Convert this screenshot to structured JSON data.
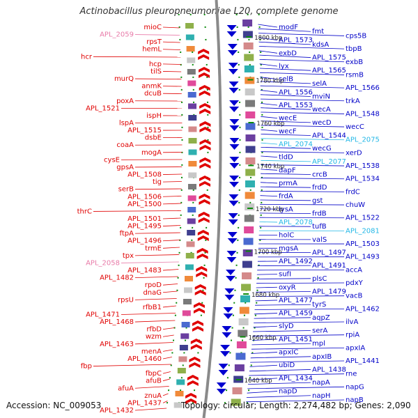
{
  "header": {
    "title": "Actinobacillus pleuropneumoniae L20, complete genome"
  },
  "footer": {
    "accession": "Accession: NC_009053",
    "summary": "Topology: circular; Length: 2,274,482 bp; Genes: 2,090"
  },
  "colors": {
    "left_label": "#e00000",
    "left_label_pseudo": "#e87aa8",
    "right_label": "#0000c8",
    "right_label_special": "#22b7e6",
    "backbone": "#8a8a8a",
    "tick": "#0a8a0a"
  },
  "ruler": {
    "marks": [
      {
        "label": "1800 kbp"
      },
      {
        "label": "1780 kbp"
      },
      {
        "label": "1760 kbp"
      },
      {
        "label": "1740 kbp"
      },
      {
        "label": "1720 kbp"
      },
      {
        "label": "1700 kbp"
      },
      {
        "label": "1680 kbp"
      },
      {
        "label": "1660 kbp"
      },
      {
        "label": "1640 kbp"
      }
    ]
  },
  "left_labels": [
    {
      "text": "mioC"
    },
    {
      "text": "APL_2059",
      "pseudo": true
    },
    {
      "text": "rpsT"
    },
    {
      "text": "hemL"
    },
    {
      "text": "hcr"
    },
    {
      "text": "hcp"
    },
    {
      "text": "tilS"
    },
    {
      "text": "murQ"
    },
    {
      "text": "anmK"
    },
    {
      "text": "dcuB"
    },
    {
      "text": "poxA"
    },
    {
      "text": "APL_1521"
    },
    {
      "text": "ispH"
    },
    {
      "text": "lspA"
    },
    {
      "text": "APL_1515"
    },
    {
      "text": "dsbE"
    },
    {
      "text": "coaA"
    },
    {
      "text": "mogA"
    },
    {
      "text": "cysE"
    },
    {
      "text": "gpsA"
    },
    {
      "text": "APL_1508"
    },
    {
      "text": "tig"
    },
    {
      "text": "serB"
    },
    {
      "text": "APL_1506"
    },
    {
      "text": "APL_1500"
    },
    {
      "text": "thrC"
    },
    {
      "text": "APL_1501"
    },
    {
      "text": "APL_1495"
    },
    {
      "text": "ftpA"
    },
    {
      "text": "APL_1496"
    },
    {
      "text": "trmE"
    },
    {
      "text": "tpx"
    },
    {
      "text": "APL_2058",
      "pseudo": true
    },
    {
      "text": "APL_1483"
    },
    {
      "text": "APL_1482"
    },
    {
      "text": "rpoD"
    },
    {
      "text": "dnaG"
    },
    {
      "text": "rpsU"
    },
    {
      "text": "rfbB1"
    },
    {
      "text": "APL_1471"
    },
    {
      "text": "APL_1468"
    },
    {
      "text": "rfbD"
    },
    {
      "text": "wzm"
    },
    {
      "text": "APL_1463"
    },
    {
      "text": "menA"
    },
    {
      "text": "APL_1460"
    },
    {
      "text": "fbp"
    },
    {
      "text": "fbpC"
    },
    {
      "text": "afuB"
    },
    {
      "text": "afuA"
    },
    {
      "text": "znuA"
    },
    {
      "text": "APL_1437"
    },
    {
      "text": "APL_1432"
    }
  ],
  "right_labels": [
    {
      "text": "modF"
    },
    {
      "text": "fmt"
    },
    {
      "text": "cps5B"
    },
    {
      "text": "APL_1573"
    },
    {
      "text": "kdsA"
    },
    {
      "text": "tbpB"
    },
    {
      "text": "exbD"
    },
    {
      "text": "APL_1575"
    },
    {
      "text": "exbB"
    },
    {
      "text": "lyx"
    },
    {
      "text": "APL_1565"
    },
    {
      "text": "rsmB"
    },
    {
      "text": "selB"
    },
    {
      "text": "selA"
    },
    {
      "text": "APL_1566"
    },
    {
      "text": "APL_1556"
    },
    {
      "text": "mviN"
    },
    {
      "text": "trkA"
    },
    {
      "text": "APL_1553"
    },
    {
      "text": "wecA"
    },
    {
      "text": "APL_1548"
    },
    {
      "text": "wecE"
    },
    {
      "text": "wecD"
    },
    {
      "text": "wecC"
    },
    {
      "text": "wecF"
    },
    {
      "text": "APL_1544"
    },
    {
      "text": "APL_2075",
      "special": true
    },
    {
      "text": "APL_2074",
      "special": true
    },
    {
      "text": "wecG"
    },
    {
      "text": "xerD"
    },
    {
      "text": "tldD"
    },
    {
      "text": "APL_2077",
      "special": true
    },
    {
      "text": "APL_1538"
    },
    {
      "text": "dapF"
    },
    {
      "text": "crcB"
    },
    {
      "text": "APL_1534"
    },
    {
      "text": "prmA"
    },
    {
      "text": "frdD"
    },
    {
      "text": "frdC"
    },
    {
      "text": "frdA"
    },
    {
      "text": "gst"
    },
    {
      "text": "chuW"
    },
    {
      "text": "lysA"
    },
    {
      "text": "frdB"
    },
    {
      "text": "APL_1522"
    },
    {
      "text": "APL_2078",
      "special": true
    },
    {
      "text": "tufB"
    },
    {
      "text": "APL_2081",
      "special": true
    },
    {
      "text": "holC"
    },
    {
      "text": "valS"
    },
    {
      "text": "APL_1503"
    },
    {
      "text": "mgsA"
    },
    {
      "text": "APL_1497"
    },
    {
      "text": "APL_1493"
    },
    {
      "text": "APL_1492"
    },
    {
      "text": "APL_1491"
    },
    {
      "text": "accA"
    },
    {
      "text": "sufI"
    },
    {
      "text": "plsC"
    },
    {
      "text": "pdxY"
    },
    {
      "text": "oxyR"
    },
    {
      "text": "APL_1479"
    },
    {
      "text": "vacB"
    },
    {
      "text": "APL_1477"
    },
    {
      "text": "tyrS"
    },
    {
      "text": "APL_1462"
    },
    {
      "text": "APL_1459"
    },
    {
      "text": "aqpZ"
    },
    {
      "text": "ilvA"
    },
    {
      "text": "slyD"
    },
    {
      "text": "serA"
    },
    {
      "text": "rpiA"
    },
    {
      "text": "APL_1451"
    },
    {
      "text": "mpl"
    },
    {
      "text": "apxIA"
    },
    {
      "text": "apxIC"
    },
    {
      "text": "apxIB"
    },
    {
      "text": "APL_1441"
    },
    {
      "text": "ubiD"
    },
    {
      "text": "APL_1438"
    },
    {
      "text": "rne"
    },
    {
      "text": "APL_1434"
    },
    {
      "text": "napA"
    },
    {
      "text": "napG"
    },
    {
      "text": "napD"
    },
    {
      "text": "napH"
    },
    {
      "text": "napB"
    }
  ],
  "features": {
    "left_arrows": [
      {
        "kind": "red"
      },
      {
        "kind": "red"
      },
      {
        "kind": "red"
      },
      {
        "kind": "red"
      },
      {
        "kind": "red"
      },
      {
        "kind": "red"
      },
      {
        "kind": "red"
      },
      {
        "kind": "red"
      },
      {
        "kind": "red"
      },
      {
        "kind": "red"
      },
      {
        "kind": "red"
      },
      {
        "kind": "red"
      },
      {
        "kind": "red"
      },
      {
        "kind": "red"
      },
      {
        "kind": "red"
      },
      {
        "kind": "red"
      },
      {
        "kind": "red"
      },
      {
        "kind": "red"
      },
      {
        "kind": "red"
      },
      {
        "kind": "red"
      }
    ],
    "right_arrows": [
      {
        "kind": "blue"
      },
      {
        "kind": "blue"
      },
      {
        "kind": "blue"
      },
      {
        "kind": "blue"
      },
      {
        "kind": "blue"
      },
      {
        "kind": "blue"
      },
      {
        "kind": "blue"
      },
      {
        "kind": "blue"
      },
      {
        "kind": "blue"
      },
      {
        "kind": "blue"
      },
      {
        "kind": "blue"
      },
      {
        "kind": "blue"
      },
      {
        "kind": "blue"
      },
      {
        "kind": "blue"
      },
      {
        "kind": "blue"
      },
      {
        "kind": "blue"
      },
      {
        "kind": "blue"
      },
      {
        "kind": "blue"
      },
      {
        "kind": "blue"
      },
      {
        "kind": "blue"
      }
    ]
  }
}
